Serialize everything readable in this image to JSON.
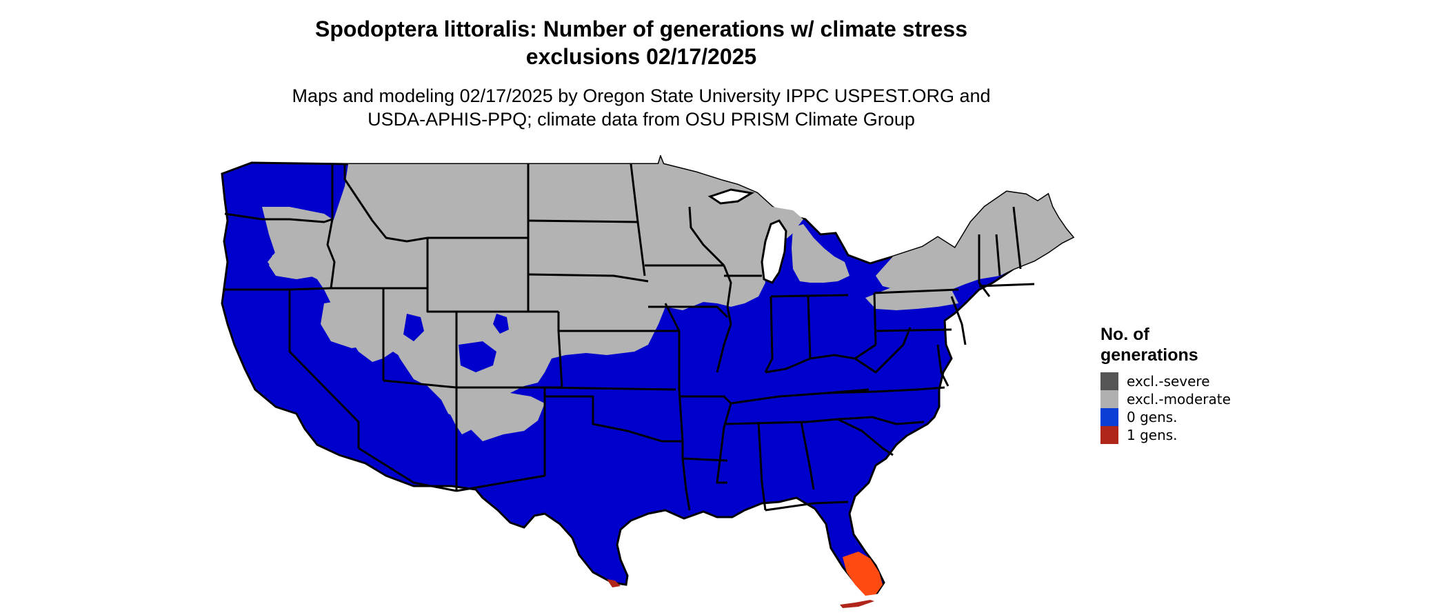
{
  "title_line1": "Spodoptera littoralis: Number of generations w/ climate stress",
  "title_line2": "exclusions 02/17/2025",
  "subtitle_line1": "Maps and modeling 02/17/2025 by Oregon State University IPPC USPEST.ORG and",
  "subtitle_line2": "USDA-APHIS-PPQ; climate data from OSU PRISM Climate Group",
  "legend": {
    "title_line1": "No. of",
    "title_line2": "generations",
    "items": [
      {
        "label": "excl.-severe",
        "color": "#555555"
      },
      {
        "label": "excl.-moderate",
        "color": "#b0b0b0"
      },
      {
        "label": "0 gens.",
        "color": "#0a3fd6"
      },
      {
        "label": "1 gens.",
        "color": "#b0261a"
      }
    ]
  },
  "map_colors": {
    "zero_gens_fill": "#0000cc",
    "moderate_fill": "#b3b3b3",
    "one_gen_fill": "#ff4a12",
    "border": "#000000"
  }
}
